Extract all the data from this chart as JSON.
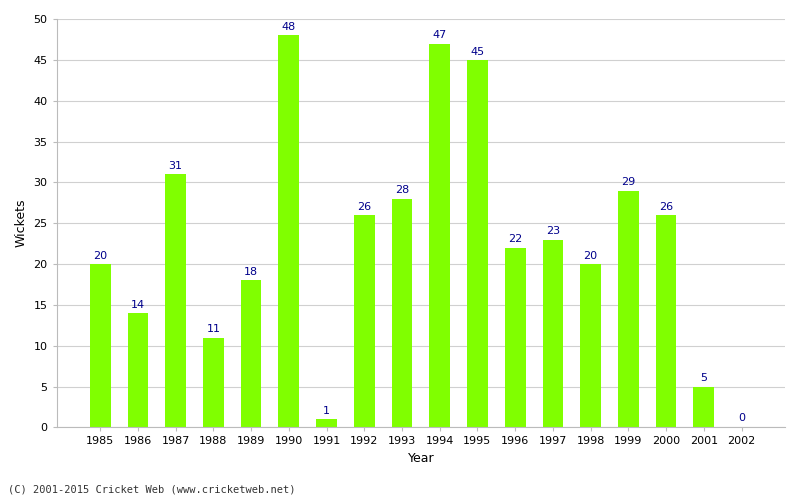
{
  "years": [
    1985,
    1986,
    1987,
    1988,
    1989,
    1990,
    1991,
    1992,
    1993,
    1994,
    1995,
    1996,
    1997,
    1998,
    1999,
    2000,
    2001,
    2002
  ],
  "wickets": [
    20,
    14,
    31,
    11,
    18,
    48,
    1,
    26,
    28,
    47,
    45,
    22,
    23,
    20,
    29,
    26,
    5,
    0
  ],
  "bar_color": "#80ff00",
  "label_color": "#00008b",
  "xlabel": "Year",
  "ylabel": "Wickets",
  "ylim": [
    0,
    50
  ],
  "yticks": [
    0,
    5,
    10,
    15,
    20,
    25,
    30,
    35,
    40,
    45,
    50
  ],
  "background_color": "#ffffff",
  "grid_color": "#d0d0d0",
  "footer_text": "(C) 2001-2015 Cricket Web (www.cricketweb.net)",
  "label_fontsize": 8,
  "axis_label_fontsize": 9,
  "tick_fontsize": 8,
  "bar_width": 0.55
}
